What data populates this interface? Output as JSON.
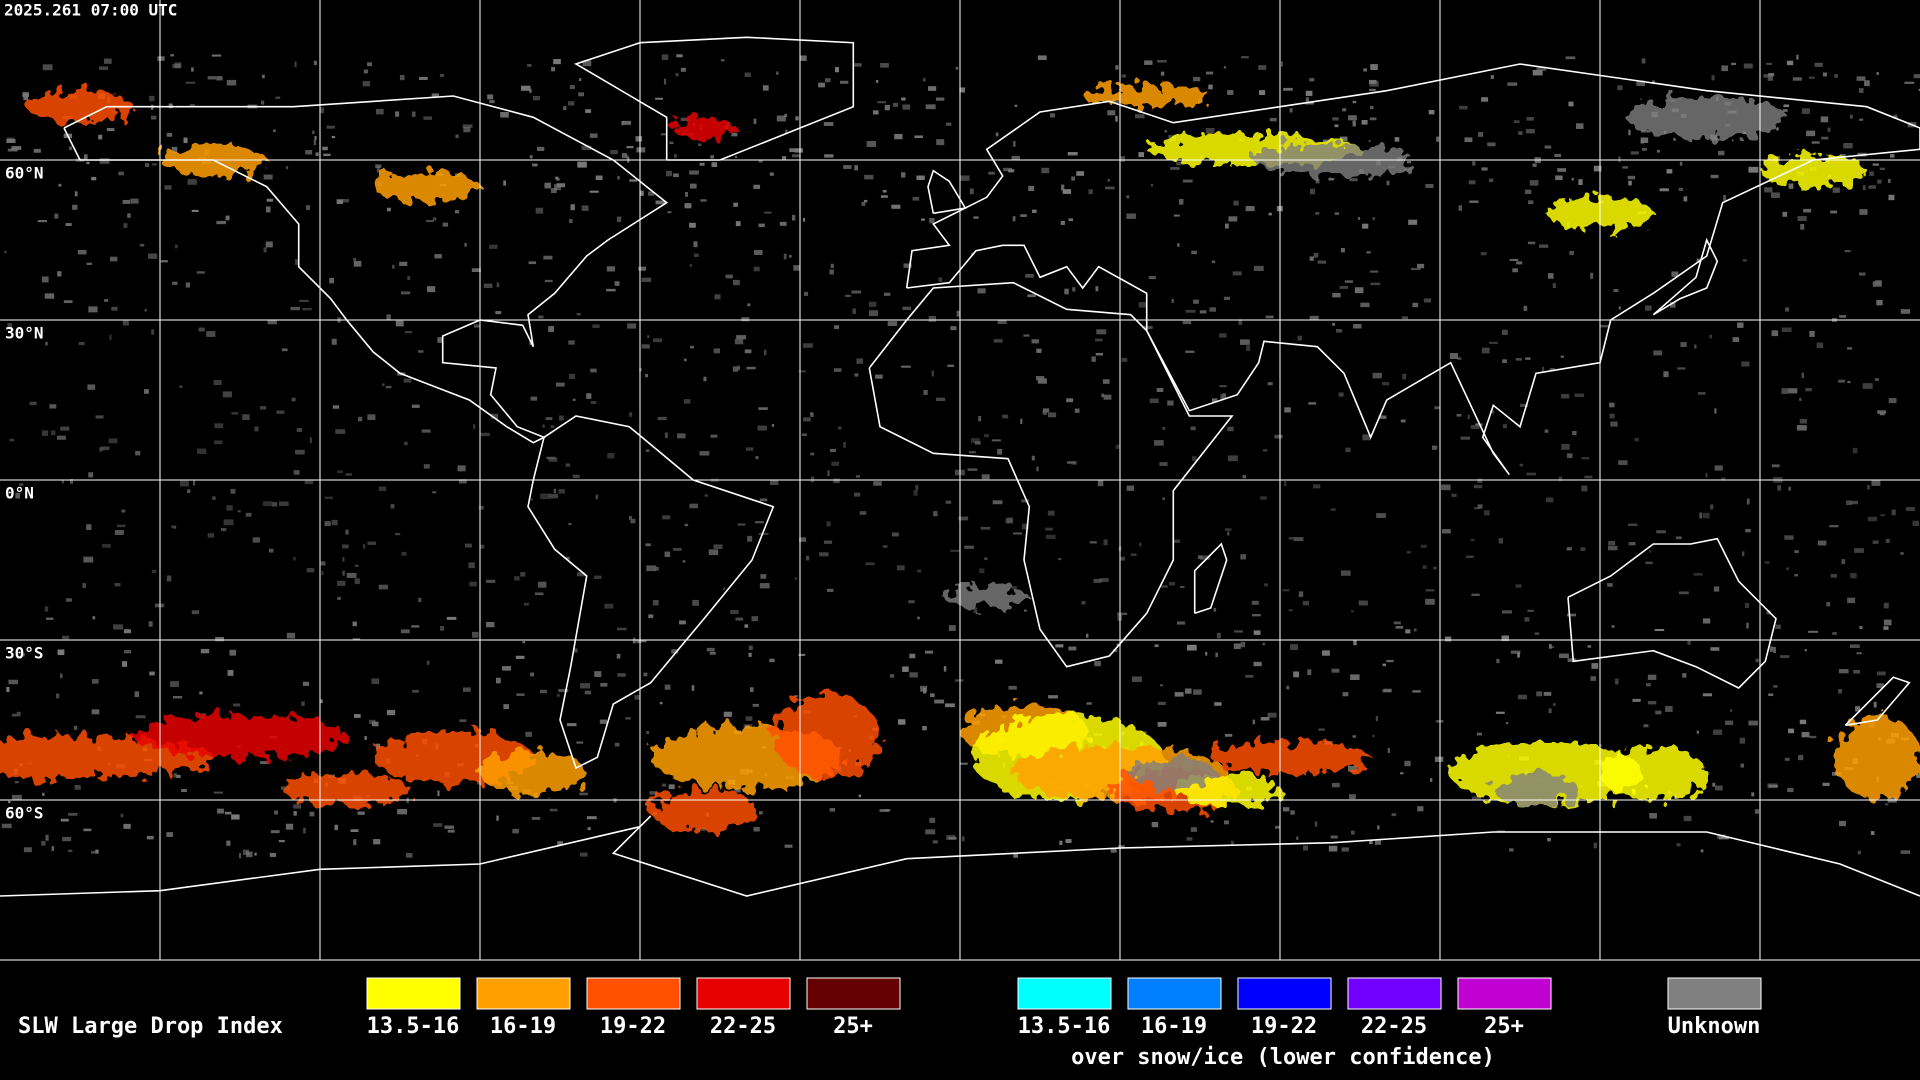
{
  "header": {
    "timestamp": "2025.261 07:00 UTC"
  },
  "map": {
    "latitude_labels": [
      "60°N",
      "30°N",
      "0°N",
      "30°S",
      "60°S"
    ]
  },
  "legend": {
    "title": "SLW Large Drop Index",
    "groups": [
      {
        "items": [
          {
            "label": "13.5-16",
            "color": "#ffff00"
          },
          {
            "label": "16-19",
            "color": "#ffa000"
          },
          {
            "label": "19-22",
            "color": "#ff5000"
          },
          {
            "label": "22-25",
            "color": "#e80000"
          },
          {
            "label": "25+",
            "color": "#640000"
          }
        ]
      },
      {
        "items": [
          {
            "label": "13.5-16",
            "color": "#00ffff"
          },
          {
            "label": "16-19",
            "color": "#0080ff"
          },
          {
            "label": "19-22",
            "color": "#0000ff"
          },
          {
            "label": "22-25",
            "color": "#7000ff"
          },
          {
            "label": "25+",
            "color": "#c000d0"
          }
        ],
        "caption": "over snow/ice (lower confidence)"
      }
    ],
    "unknown": {
      "label": "Unknown",
      "color": "#808080"
    }
  }
}
